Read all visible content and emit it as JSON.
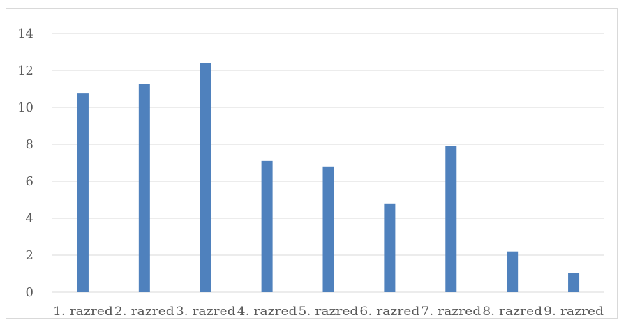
{
  "chart_data": {
    "type": "bar",
    "categories": [
      "1. razred",
      "2. razred",
      "3. razred",
      "4. razred",
      "5. razred",
      "6. razred",
      "7. razred",
      "8. razred",
      "9. razred"
    ],
    "values": [
      10.75,
      11.25,
      12.4,
      7.1,
      6.8,
      4.8,
      7.9,
      2.2,
      1.05
    ],
    "ylim": [
      0,
      14
    ],
    "yticks": [
      0,
      2,
      4,
      6,
      8,
      10,
      12,
      14
    ],
    "grid": true,
    "bar_color": "#4f81bd",
    "grid_color": "#d9d9d9"
  }
}
